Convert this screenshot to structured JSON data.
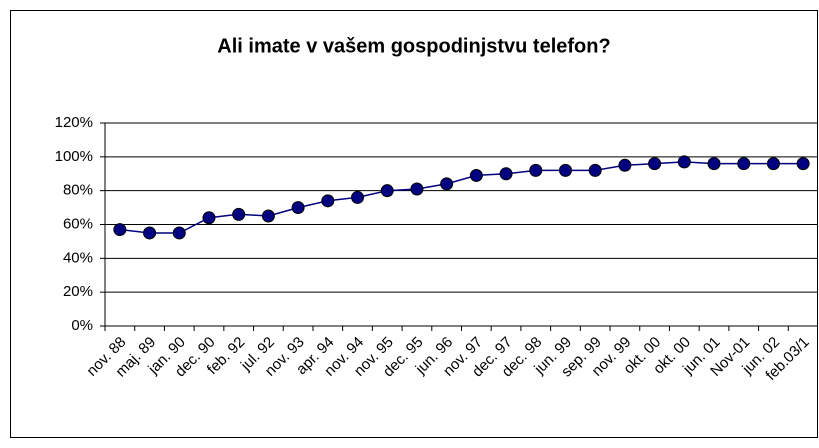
{
  "chart_data": {
    "type": "line",
    "title": "Ali imate v vašem gospodinjstvu telefon?",
    "categories": [
      "nov. 88",
      "maj. 89",
      "jan. 90",
      "dec. 90",
      "feb. 92",
      "jul. 92",
      "nov. 93",
      "apr. 94",
      "nov. 94",
      "nov. 95",
      "dec. 95",
      "jun. 96",
      "nov. 97",
      "dec. 97",
      "dec. 98",
      "jun. 99",
      "sep. 99",
      "nov. 99",
      "okt. 00",
      "okt. 00",
      "jun. 01",
      "Nov-01",
      "jun. 02",
      "feb.03/1"
    ],
    "values": [
      57,
      55,
      55,
      64,
      66,
      65,
      70,
      74,
      76,
      80,
      81,
      84,
      89,
      90,
      92,
      92,
      92,
      95,
      96,
      97,
      96,
      96,
      96,
      96
    ],
    "color": "#000080",
    "ylim": [
      0,
      120
    ],
    "yticks": [
      {
        "value": 0,
        "label": "0%"
      },
      {
        "value": 20,
        "label": "20%"
      },
      {
        "value": 40,
        "label": "40%"
      },
      {
        "value": 60,
        "label": "60%"
      },
      {
        "value": 80,
        "label": "80%"
      },
      {
        "value": 100,
        "label": "100%"
      },
      {
        "value": 120,
        "label": "120%"
      }
    ],
    "grid": true
  }
}
